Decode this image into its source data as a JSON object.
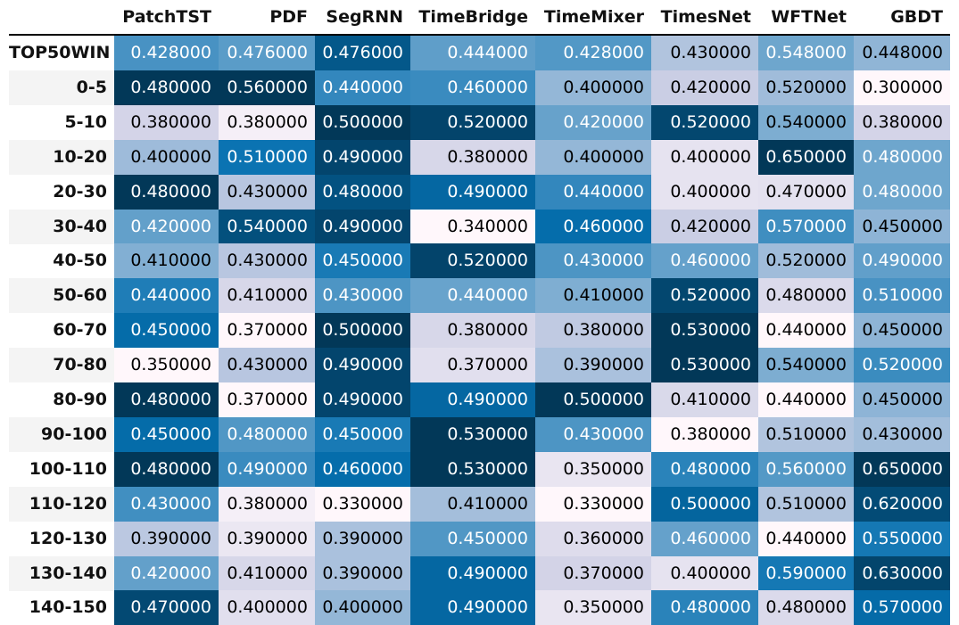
{
  "chart_data": {
    "type": "heatmap",
    "columns": [
      "PatchTST",
      "PDF",
      "SegRNN",
      "TimeBridge",
      "TimeMixer",
      "TimesNet",
      "WFTNet",
      "GBDT"
    ],
    "rows": [
      "TOP50WIN",
      "0-5",
      "5-10",
      "10-20",
      "20-30",
      "30-40",
      "40-50",
      "50-60",
      "60-70",
      "70-80",
      "80-90",
      "90-100",
      "100-110",
      "110-120",
      "120-130",
      "130-140",
      "140-150"
    ],
    "values": [
      [
        0.428,
        0.476,
        0.476,
        0.444,
        0.428,
        0.43,
        0.548,
        0.448
      ],
      [
        0.48,
        0.56,
        0.44,
        0.46,
        0.4,
        0.42,
        0.52,
        0.3
      ],
      [
        0.38,
        0.38,
        0.5,
        0.52,
        0.42,
        0.52,
        0.54,
        0.38
      ],
      [
        0.4,
        0.51,
        0.49,
        0.38,
        0.4,
        0.4,
        0.65,
        0.48
      ],
      [
        0.48,
        0.43,
        0.48,
        0.49,
        0.44,
        0.4,
        0.47,
        0.48
      ],
      [
        0.42,
        0.54,
        0.49,
        0.34,
        0.46,
        0.42,
        0.57,
        0.45
      ],
      [
        0.41,
        0.43,
        0.45,
        0.52,
        0.43,
        0.46,
        0.52,
        0.49
      ],
      [
        0.44,
        0.41,
        0.43,
        0.44,
        0.41,
        0.52,
        0.48,
        0.51
      ],
      [
        0.45,
        0.37,
        0.5,
        0.38,
        0.38,
        0.53,
        0.44,
        0.45
      ],
      [
        0.35,
        0.43,
        0.49,
        0.37,
        0.39,
        0.53,
        0.54,
        0.52
      ],
      [
        0.48,
        0.37,
        0.49,
        0.49,
        0.5,
        0.41,
        0.44,
        0.45
      ],
      [
        0.45,
        0.48,
        0.45,
        0.53,
        0.43,
        0.38,
        0.51,
        0.43
      ],
      [
        0.48,
        0.49,
        0.46,
        0.53,
        0.35,
        0.48,
        0.56,
        0.65
      ],
      [
        0.43,
        0.38,
        0.33,
        0.41,
        0.33,
        0.5,
        0.51,
        0.62
      ],
      [
        0.39,
        0.39,
        0.39,
        0.45,
        0.36,
        0.46,
        0.44,
        0.55
      ],
      [
        0.42,
        0.41,
        0.39,
        0.49,
        0.37,
        0.4,
        0.59,
        0.63
      ],
      [
        0.47,
        0.4,
        0.4,
        0.49,
        0.35,
        0.48,
        0.48,
        0.57
      ]
    ],
    "value_format": "0.000000",
    "colormap": "per-column sequential (light lavender to dark blue)",
    "colors": {
      "low": "#fff7fb",
      "mid_low": "#d0d1e6",
      "mid": "#74a9cf",
      "mid_high": "#0570b0",
      "high": "#023858",
      "text_dark": "#000000",
      "text_light": "#ffffff",
      "row_label_band": "#f4f4f4"
    }
  }
}
